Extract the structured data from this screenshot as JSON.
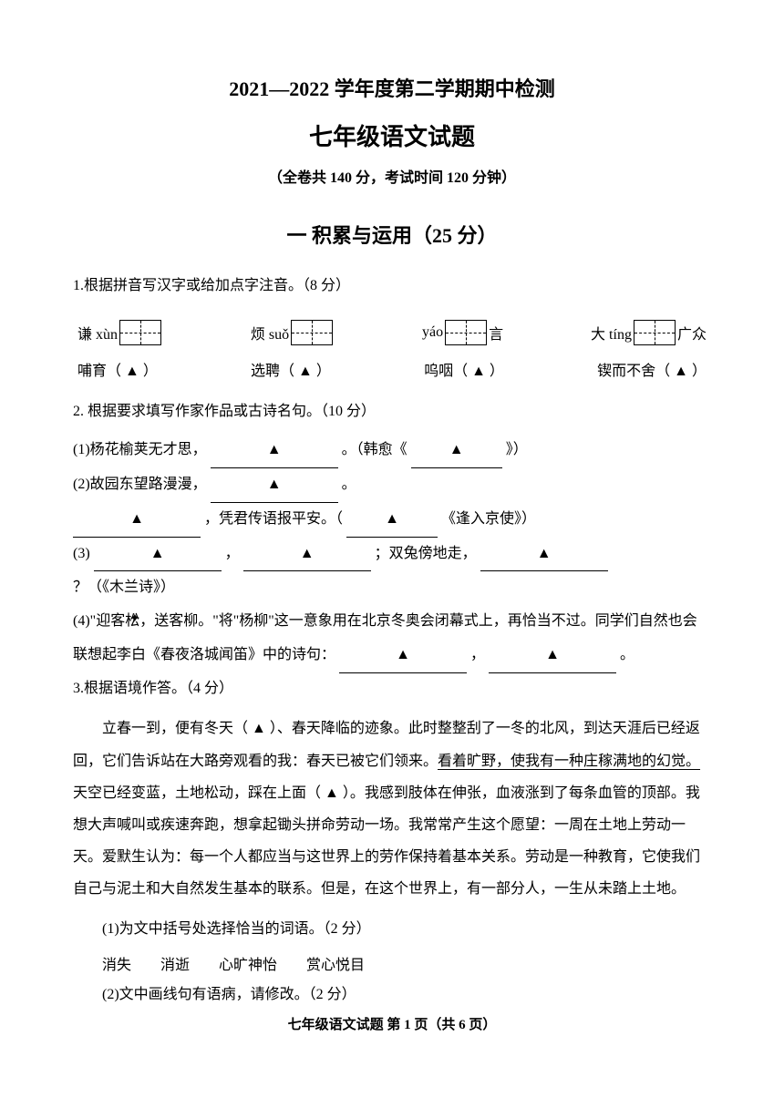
{
  "header": {
    "main_title": "2021—2022 学年度第二学期期中检测",
    "sub_title": "七年级语文试题",
    "info": "（全卷共 140 分，考试时间 120 分钟）"
  },
  "section1": {
    "title": "一 积累与运用（25 分）",
    "q1": {
      "prompt": "1.根据拼音写汉字或给加点字注音。（8 分）",
      "pinyin_items": [
        {
          "prefix": "谦 xùn",
          "suffix": ""
        },
        {
          "prefix": "烦 suǒ",
          "suffix": ""
        },
        {
          "prefix": "yáo",
          "suffix": "言"
        },
        {
          "prefix": "大 tíng",
          "suffix": "广众"
        }
      ],
      "fill_items": [
        "哺育（  ▲  ）",
        "选聘（  ▲  ）",
        "呜咽（  ▲  ）",
        "锲而不舍（  ▲  ）"
      ]
    },
    "q2": {
      "prompt": "2. 根据要求填写作家作品或古诗名句。（10 分）",
      "items": [
        "(1)杨花榆荚无才思，",
        "。（韩愈《",
        "》）",
        "(2)故园东望路漫漫，",
        "。",
        "，凭君传语报平安。（",
        "《逢入京使》）",
        "(3)",
        "，",
        "；双兔傍地走，",
        "？（《木兰诗》）",
        "(4)\"迎客松，送客柳。\"将\"杨柳\"这一意象用在北京冬奥会闭幕式上，再恰当不过。同学们自然也会联想起李白《春夜洛城闻笛》中的诗句：",
        "，",
        "。"
      ]
    },
    "q3": {
      "prompt": "3.根据语境作答。（4 分）",
      "passage_part1": "立春一到，便有冬天（   ▲   ）、春天降临的迹象。此时整整刮了一冬的北风，到达天涯后已经返回，它们告诉站在大路旁观看的我：春天已被它们领来。",
      "passage_underlined": "看着旷野，使我有一种庄稼满地的幻觉。",
      "passage_part2": "天空已经变蓝，土地松动，踩在上面（     ▲     ）。我感到肢体在伸张，血液涨到了每条血管的顶部。我想大声喊叫或疾速奔跑，想拿起锄头拼命劳动一场。我常常产生这个愿望：一周在土地上劳动一天。爱默生认为：每一个人都应当与这世界上的劳作保持着基本关系。劳动是一种教育，它使我们自己与泥土和大自然发生基本的联系。但是，在这个世界上，有一部分人，一生从未踏上土地。",
      "sub_q1": "(1)为文中括号处选择恰当的词语。（2 分）",
      "choices": [
        "消失",
        "消逝",
        "心旷神怡",
        "赏心悦目"
      ],
      "sub_q2": "(2)文中画线句有语病，请修改。（2 分）"
    }
  },
  "footer": "七年级语文试题 第 1 页（共 6 页）"
}
